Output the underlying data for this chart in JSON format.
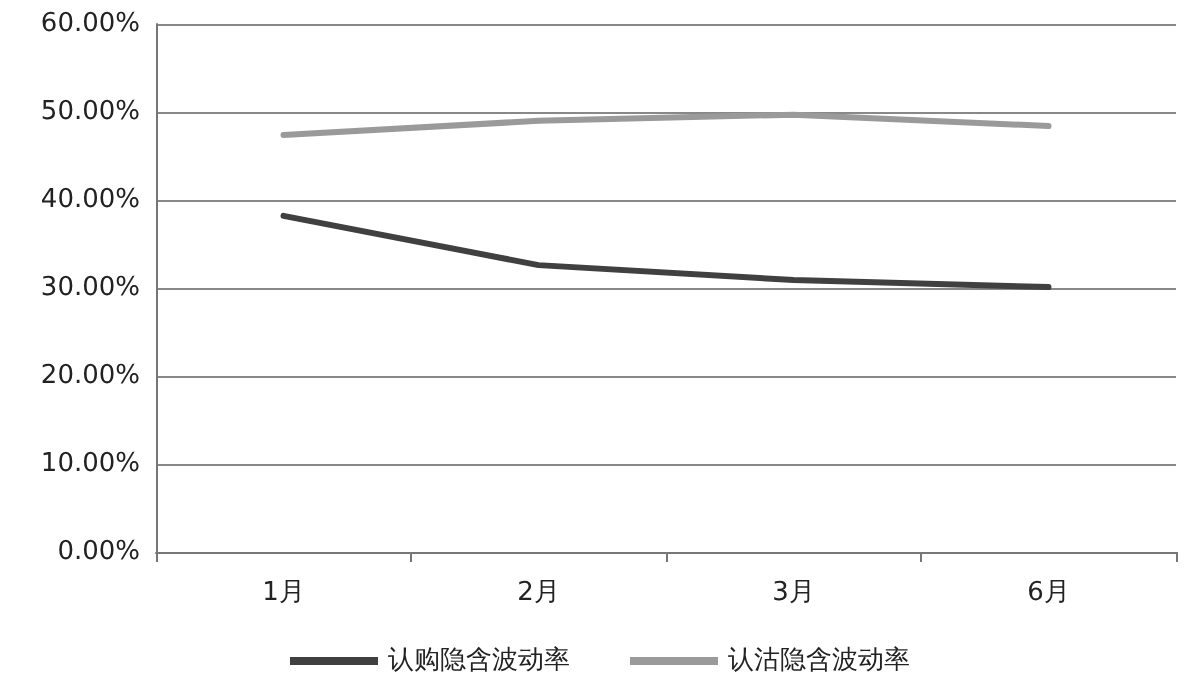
{
  "chart_data": {
    "type": "line",
    "categories": [
      "1月",
      "2月",
      "3月",
      "6月"
    ],
    "series": [
      {
        "name": "认购隐含波动率",
        "color": "#404040",
        "values": [
          38.2,
          32.6,
          30.9,
          30.1
        ]
      },
      {
        "name": "认沽隐含波动率",
        "color": "#9a9a9a",
        "values": [
          47.4,
          49.0,
          49.7,
          48.4
        ]
      }
    ],
    "ylim": [
      0,
      60
    ],
    "yticks": [
      {
        "value": 0,
        "label": "0.00%"
      },
      {
        "value": 10,
        "label": "10.00%"
      },
      {
        "value": 20,
        "label": "20.00%"
      },
      {
        "value": 30,
        "label": "30.00%"
      },
      {
        "value": 40,
        "label": "40.00%"
      },
      {
        "value": 50,
        "label": "50.00%"
      },
      {
        "value": 60,
        "label": "60.00%"
      }
    ],
    "grid": "y",
    "legend": "bottom",
    "marker": "none",
    "line_style": "solid"
  }
}
